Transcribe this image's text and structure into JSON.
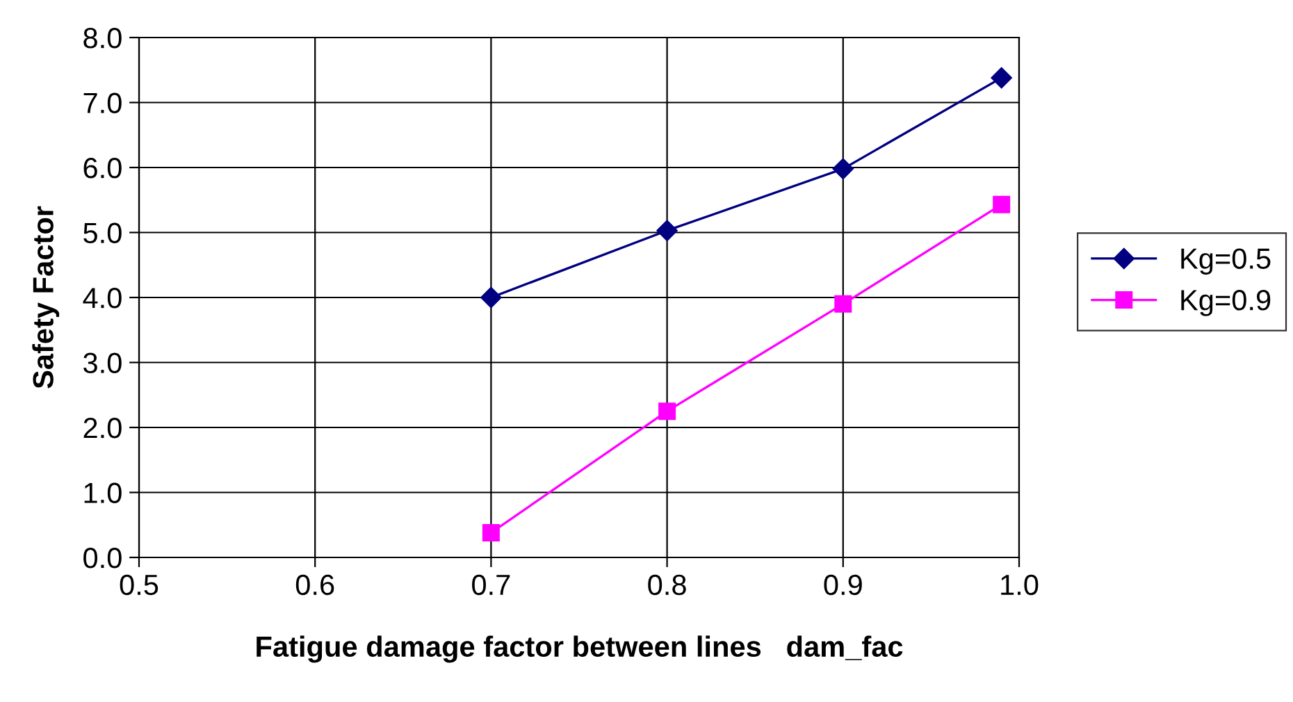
{
  "chart_data": {
    "type": "line",
    "xlabel": "Fatigue damage factor between lines   dam_fac",
    "ylabel": "Safety Factor",
    "xlim": [
      0.5,
      1.0
    ],
    "xticks": [
      0.5,
      0.6,
      0.7,
      0.8,
      0.9,
      {
        "value": 1.0,
        "label": "1.0"
      }
    ],
    "ylim": [
      0,
      8
    ],
    "yticks": [
      {
        "value": 0,
        "label": "0.0"
      },
      {
        "value": 1,
        "label": "1.0"
      },
      {
        "value": 2,
        "label": "2.0"
      },
      {
        "value": 3,
        "label": "3.0"
      },
      {
        "value": 4,
        "label": "4.0"
      },
      {
        "value": 5,
        "label": "5.0"
      },
      {
        "value": 6,
        "label": "6.0"
      },
      {
        "value": 7,
        "label": "7.0"
      },
      {
        "value": 8,
        "label": "8.0"
      }
    ],
    "grid": true,
    "legend": "right",
    "line_style": "solid",
    "series": [
      {
        "name": "Kg=0.5",
        "color": "#000080",
        "marker": "diamond",
        "x": [
          0.7,
          0.8,
          0.9,
          0.99
        ],
        "values": [
          4.0,
          5.03,
          5.98,
          7.38
        ]
      },
      {
        "name": "Kg=0.9",
        "color": "#ff00ff",
        "marker": "square",
        "x": [
          0.7,
          0.8,
          0.9,
          0.99
        ],
        "values": [
          0.38,
          2.25,
          3.9,
          5.43
        ]
      }
    ]
  }
}
